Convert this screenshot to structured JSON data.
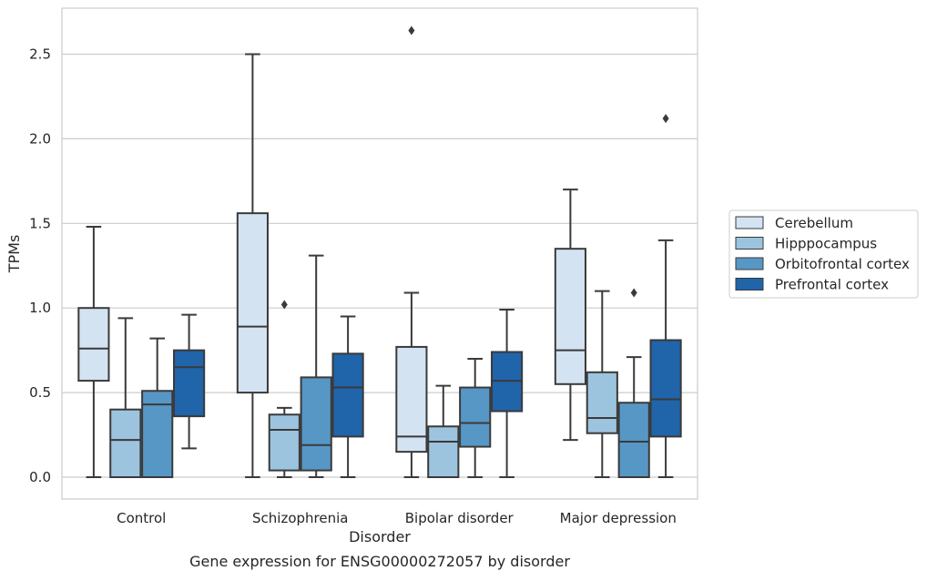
{
  "chart_data": {
    "type": "box",
    "title": "",
    "caption": "Gene expression for ENSG00000272057 by disorder",
    "xlabel": "Disorder",
    "ylabel": "TPMs",
    "ylim": [
      -0.13,
      2.78
    ],
    "yticks": [
      0.0,
      0.5,
      1.0,
      1.5,
      2.0,
      2.5
    ],
    "ytick_labels": [
      "0.0",
      "0.5",
      "1.0",
      "1.5",
      "2.0",
      "2.5"
    ],
    "grid": "horizontal",
    "legend_position": "right",
    "categories": [
      "Control",
      "Schizophrenia",
      "Bipolar disorder",
      "Major depression"
    ],
    "series": [
      {
        "name": "Cerebellum",
        "color": "#d3e3f2",
        "boxes": [
          {
            "whislo": 0.0,
            "q1": 0.57,
            "median": 0.76,
            "q3": 1.0,
            "whishi": 1.48,
            "fliers": []
          },
          {
            "whislo": 0.0,
            "q1": 0.5,
            "median": 0.89,
            "q3": 1.56,
            "whishi": 2.5,
            "fliers": []
          },
          {
            "whislo": 0.0,
            "q1": 0.15,
            "median": 0.24,
            "q3": 0.77,
            "whishi": 1.09,
            "fliers": [
              2.64
            ]
          },
          {
            "whislo": 0.22,
            "q1": 0.55,
            "median": 0.75,
            "q3": 1.35,
            "whishi": 1.7,
            "fliers": []
          }
        ]
      },
      {
        "name": "Hipppocampus",
        "color": "#9dc4de",
        "boxes": [
          {
            "whislo": 0.0,
            "q1": 0.0,
            "median": 0.22,
            "q3": 0.4,
            "whishi": 0.94,
            "fliers": []
          },
          {
            "whislo": 0.0,
            "q1": 0.04,
            "median": 0.28,
            "q3": 0.37,
            "whishi": 0.41,
            "fliers": [
              1.02
            ]
          },
          {
            "whislo": 0.0,
            "q1": 0.0,
            "median": 0.21,
            "q3": 0.3,
            "whishi": 0.54,
            "fliers": []
          },
          {
            "whislo": 0.0,
            "q1": 0.26,
            "median": 0.35,
            "q3": 0.62,
            "whishi": 1.1,
            "fliers": []
          }
        ]
      },
      {
        "name": "Orbitofrontal cortex",
        "color": "#5797c6",
        "boxes": [
          {
            "whislo": 0.0,
            "q1": 0.0,
            "median": 0.43,
            "q3": 0.51,
            "whishi": 0.82,
            "fliers": []
          },
          {
            "whislo": 0.0,
            "q1": 0.04,
            "median": 0.19,
            "q3": 0.59,
            "whishi": 1.31,
            "fliers": []
          },
          {
            "whislo": 0.0,
            "q1": 0.18,
            "median": 0.32,
            "q3": 0.53,
            "whishi": 0.7,
            "fliers": []
          },
          {
            "whislo": 0.0,
            "q1": 0.0,
            "median": 0.21,
            "q3": 0.44,
            "whishi": 0.71,
            "fliers": [
              1.09
            ]
          }
        ]
      },
      {
        "name": "Prefrontal cortex",
        "color": "#2064aa",
        "boxes": [
          {
            "whislo": 0.17,
            "q1": 0.36,
            "median": 0.65,
            "q3": 0.75,
            "whishi": 0.96,
            "fliers": []
          },
          {
            "whislo": 0.0,
            "q1": 0.24,
            "median": 0.53,
            "q3": 0.73,
            "whishi": 0.95,
            "fliers": []
          },
          {
            "whislo": 0.0,
            "q1": 0.39,
            "median": 0.57,
            "q3": 0.74,
            "whishi": 0.99,
            "fliers": []
          },
          {
            "whislo": 0.0,
            "q1": 0.24,
            "median": 0.46,
            "q3": 0.81,
            "whishi": 1.4,
            "fliers": [
              2.12
            ]
          }
        ]
      }
    ]
  }
}
